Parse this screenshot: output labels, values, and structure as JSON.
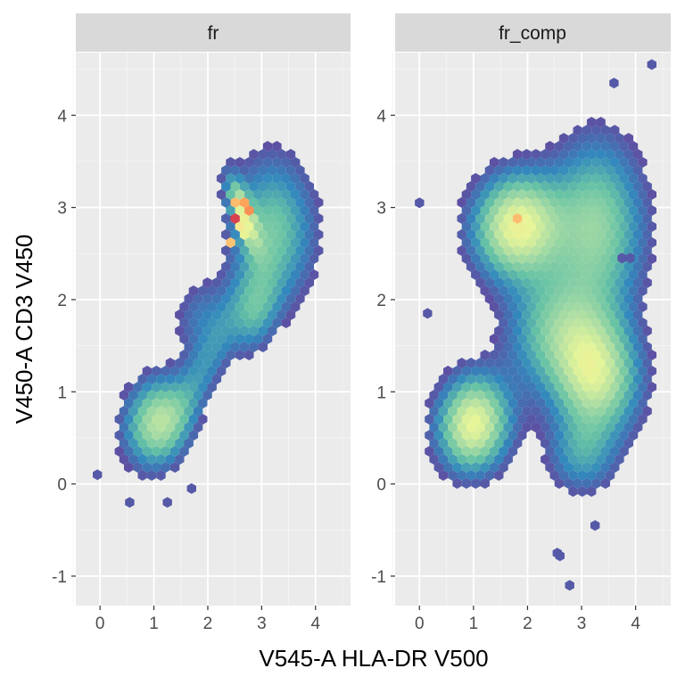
{
  "chart_data": {
    "type": "heatmap",
    "subtype": "hexbin-facets",
    "xlabel": "V545-A HLA-DR V500",
    "ylabel": "V450-A CD3 V450",
    "xlim": [
      -0.45,
      4.65
    ],
    "ylim": [
      -1.32,
      4.68
    ],
    "x_ticks": [
      0,
      1,
      2,
      3,
      4
    ],
    "y_ticks": [
      -1,
      0,
      1,
      2,
      3,
      4
    ],
    "grid": true,
    "color_scale": [
      "#5E4FA2",
      "#3288BD",
      "#66C2A5",
      "#ABDDA4",
      "#E6F598",
      "#FEE08B",
      "#FDAE61",
      "#F46D43",
      "#D53E4F",
      "#9E0142"
    ],
    "panels": [
      {
        "label": "fr",
        "clusters": [
          {
            "x": 1.05,
            "y": 0.68,
            "sx": 0.42,
            "sy": 0.32,
            "w": 1.0,
            "rot": 0.25
          },
          {
            "x": 2.0,
            "y": 1.35,
            "sx": 0.75,
            "sy": 0.22,
            "w": 0.45,
            "rot": 0.85
          },
          {
            "x": 3.2,
            "y": 2.75,
            "sx": 0.55,
            "sy": 0.55,
            "w": 0.75,
            "rot": 0.8
          },
          {
            "x": 2.65,
            "y": 2.95,
            "sx": 0.12,
            "sy": 0.3,
            "w": 0.95,
            "rot": 0.6
          },
          {
            "x": 2.9,
            "y": 1.85,
            "sx": 0.35,
            "sy": 0.25,
            "w": 0.5,
            "rot": 0.8
          },
          {
            "x": 1.8,
            "y": 1.85,
            "sx": 0.35,
            "sy": 0.25,
            "w": 0.3,
            "rot": 0.5
          }
        ],
        "peaks": [
          {
            "x": 2.52,
            "y": 2.85,
            "v": 1.0
          },
          {
            "x": 2.72,
            "y": 3.0,
            "v": 0.9
          },
          {
            "x": 2.55,
            "y": 3.05,
            "v": 0.75
          },
          {
            "x": 2.4,
            "y": 2.65,
            "v": 0.72
          },
          {
            "x": 2.62,
            "y": 2.75,
            "v": 0.62
          }
        ],
        "outliers": [
          {
            "x": -0.05,
            "y": 0.1
          },
          {
            "x": 0.55,
            "y": -0.2
          },
          {
            "x": 1.25,
            "y": -0.2
          },
          {
            "x": 1.7,
            "y": -0.05
          }
        ]
      },
      {
        "label": "fr_comp",
        "clusters": [
          {
            "x": 1.0,
            "y": 0.65,
            "sx": 0.45,
            "sy": 0.35,
            "w": 1.0,
            "rot": 0.1
          },
          {
            "x": 1.8,
            "y": 2.8,
            "sx": 0.55,
            "sy": 0.38,
            "w": 1.0,
            "rot": 0.05
          },
          {
            "x": 3.25,
            "y": 1.2,
            "sx": 0.45,
            "sy": 0.55,
            "w": 0.9,
            "rot": 1.4
          },
          {
            "x": 3.3,
            "y": 2.8,
            "sx": 0.6,
            "sy": 0.65,
            "w": 0.65,
            "rot": 0.1
          },
          {
            "x": 2.4,
            "y": 1.7,
            "sx": 0.6,
            "sy": 0.45,
            "w": 0.45,
            "rot": 0.2
          },
          {
            "x": 3.0,
            "y": 0.3,
            "sx": 0.45,
            "sy": 0.3,
            "w": 0.35,
            "rot": 0.0
          }
        ],
        "peaks": [
          {
            "x": 1.78,
            "y": 2.88,
            "v": 0.72
          },
          {
            "x": 1.78,
            "y": 2.75,
            "v": 0.55
          }
        ],
        "outliers": [
          {
            "x": 0.0,
            "y": 3.05
          },
          {
            "x": 0.15,
            "y": 1.85
          },
          {
            "x": 2.55,
            "y": -0.75
          },
          {
            "x": 2.6,
            "y": -0.78
          },
          {
            "x": 2.78,
            "y": -1.1
          },
          {
            "x": 3.25,
            "y": -0.45
          },
          {
            "x": 3.6,
            "y": 4.35
          },
          {
            "x": 4.3,
            "y": 4.55
          },
          {
            "x": 3.75,
            "y": 2.45
          },
          {
            "x": 3.9,
            "y": 2.45
          }
        ]
      }
    ]
  }
}
